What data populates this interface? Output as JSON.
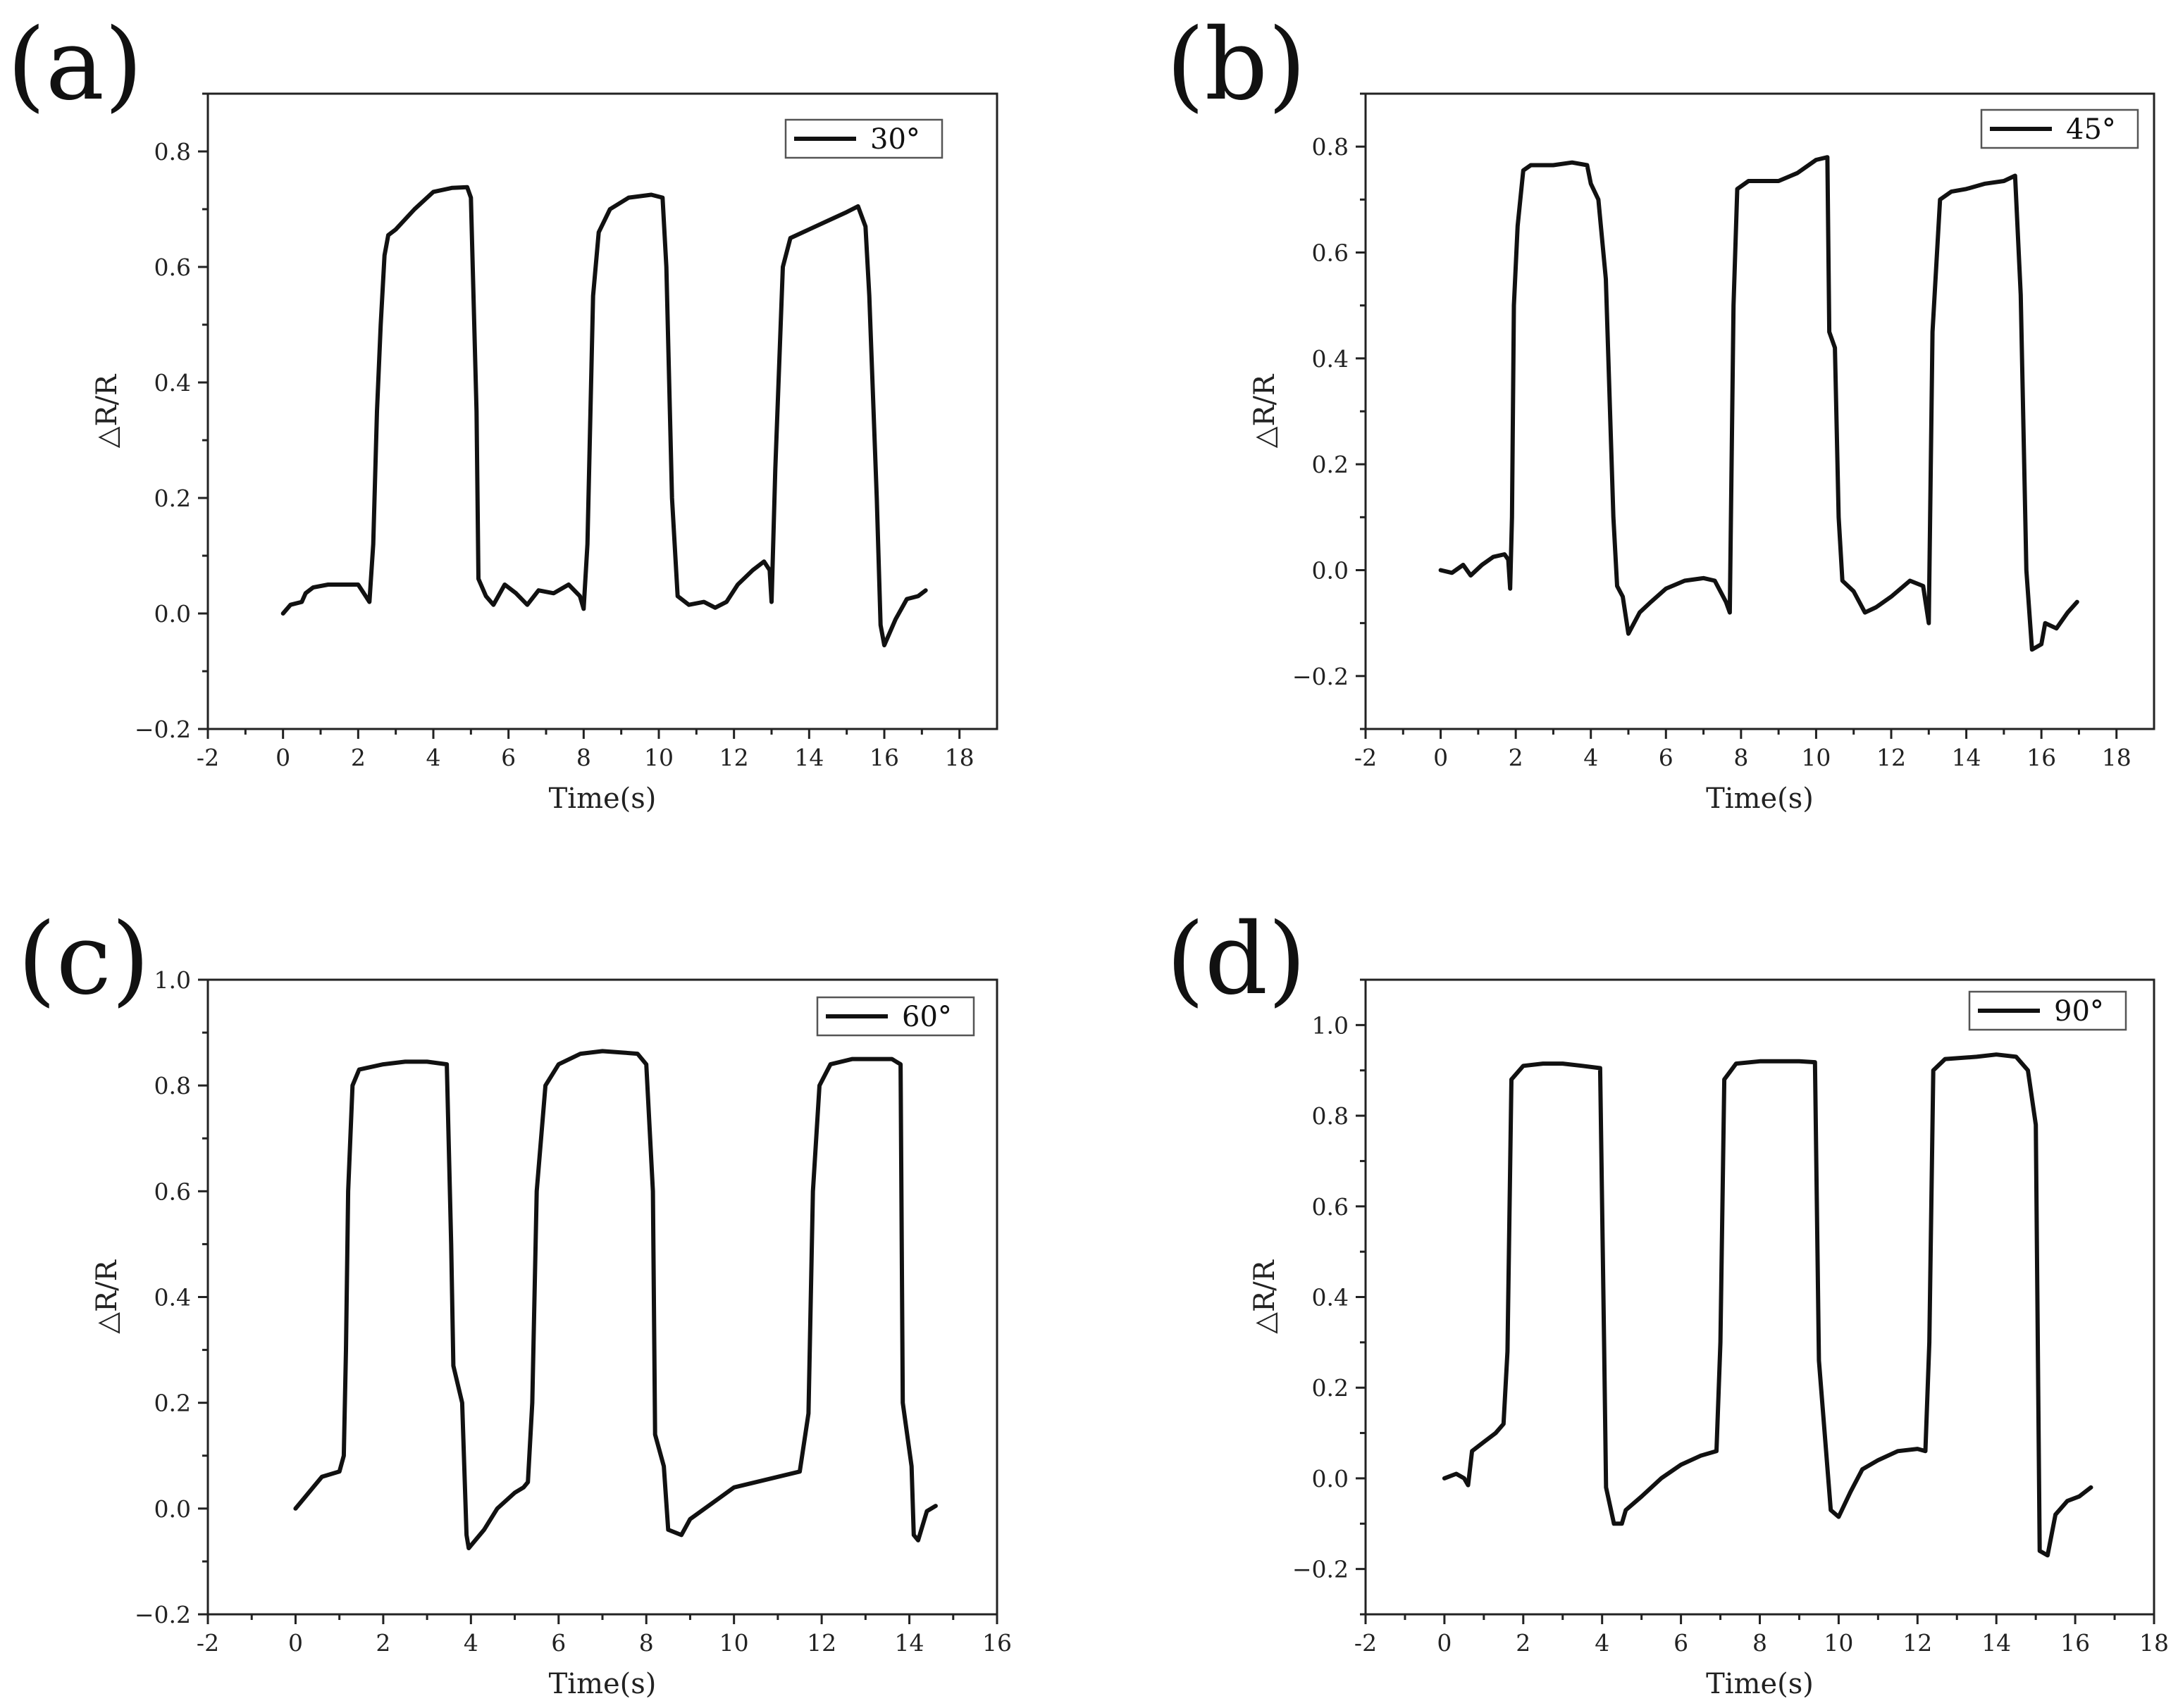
{
  "chart_data": [
    {
      "panel": "(a)",
      "type": "line",
      "xlabel": "Time(s)",
      "ylabel": "△R/R",
      "xlim": [
        -2,
        19
      ],
      "ylim": [
        -0.2,
        0.9
      ],
      "xticks": [
        -2,
        0,
        2,
        4,
        6,
        8,
        10,
        12,
        14,
        16,
        18
      ],
      "yticks": [
        -0.2,
        0.0,
        0.2,
        0.4,
        0.6,
        0.8
      ],
      "yminor": true,
      "legend": "top-right",
      "series": [
        {
          "name": "30°",
          "points": [
            [
              0,
              0.0
            ],
            [
              0.2,
              0.015
            ],
            [
              0.5,
              0.02
            ],
            [
              0.6,
              0.035
            ],
            [
              0.8,
              0.045
            ],
            [
              1.2,
              0.05
            ],
            [
              1.6,
              0.05
            ],
            [
              2.0,
              0.05
            ],
            [
              2.2,
              0.03
            ],
            [
              2.3,
              0.02
            ],
            [
              2.4,
              0.12
            ],
            [
              2.5,
              0.35
            ],
            [
              2.6,
              0.5
            ],
            [
              2.7,
              0.62
            ],
            [
              2.8,
              0.655
            ],
            [
              3.0,
              0.665
            ],
            [
              3.5,
              0.7
            ],
            [
              4.0,
              0.73
            ],
            [
              4.5,
              0.737
            ],
            [
              4.9,
              0.738
            ],
            [
              5.0,
              0.72
            ],
            [
              5.15,
              0.35
            ],
            [
              5.2,
              0.06
            ],
            [
              5.4,
              0.03
            ],
            [
              5.6,
              0.015
            ],
            [
              5.9,
              0.05
            ],
            [
              6.2,
              0.035
            ],
            [
              6.5,
              0.015
            ],
            [
              6.8,
              0.04
            ],
            [
              7.2,
              0.035
            ],
            [
              7.6,
              0.05
            ],
            [
              7.9,
              0.03
            ],
            [
              8.0,
              0.008
            ],
            [
              8.1,
              0.12
            ],
            [
              8.25,
              0.55
            ],
            [
              8.4,
              0.66
            ],
            [
              8.7,
              0.7
            ],
            [
              9.2,
              0.72
            ],
            [
              9.8,
              0.725
            ],
            [
              10.1,
              0.72
            ],
            [
              10.2,
              0.6
            ],
            [
              10.35,
              0.2
            ],
            [
              10.5,
              0.03
            ],
            [
              10.8,
              0.015
            ],
            [
              11.2,
              0.02
            ],
            [
              11.5,
              0.01
            ],
            [
              11.8,
              0.02
            ],
            [
              12.1,
              0.05
            ],
            [
              12.5,
              0.075
            ],
            [
              12.8,
              0.09
            ],
            [
              12.95,
              0.075
            ],
            [
              13.0,
              0.02
            ],
            [
              13.1,
              0.25
            ],
            [
              13.3,
              0.6
            ],
            [
              13.5,
              0.65
            ],
            [
              14.0,
              0.665
            ],
            [
              14.5,
              0.68
            ],
            [
              15.0,
              0.695
            ],
            [
              15.3,
              0.705
            ],
            [
              15.5,
              0.67
            ],
            [
              15.6,
              0.55
            ],
            [
              15.8,
              0.2
            ],
            [
              15.9,
              -0.02
            ],
            [
              16.0,
              -0.055
            ],
            [
              16.3,
              -0.01
            ],
            [
              16.6,
              0.025
            ],
            [
              16.9,
              0.03
            ],
            [
              17.1,
              0.04
            ]
          ]
        }
      ]
    },
    {
      "panel": "(b)",
      "type": "line",
      "xlabel": "Time(s)",
      "ylabel": "△R/R",
      "xlim": [
        -2,
        19
      ],
      "ylim": [
        -0.3,
        0.9
      ],
      "xticks": [
        -2,
        0,
        2,
        4,
        6,
        8,
        10,
        12,
        14,
        16,
        18
      ],
      "yticks": [
        -0.2,
        0.0,
        0.2,
        0.4,
        0.6,
        0.8
      ],
      "yminor": true,
      "legend": "top-right",
      "series": [
        {
          "name": "45°",
          "points": [
            [
              0,
              0.0
            ],
            [
              0.3,
              -0.005
            ],
            [
              0.6,
              0.01
            ],
            [
              0.8,
              -0.01
            ],
            [
              1.1,
              0.01
            ],
            [
              1.4,
              0.025
            ],
            [
              1.7,
              0.03
            ],
            [
              1.8,
              0.02
            ],
            [
              1.85,
              -0.035
            ],
            [
              1.9,
              0.1
            ],
            [
              1.95,
              0.5
            ],
            [
              2.05,
              0.65
            ],
            [
              2.2,
              0.755
            ],
            [
              2.4,
              0.765
            ],
            [
              3.0,
              0.765
            ],
            [
              3.5,
              0.77
            ],
            [
              3.9,
              0.765
            ],
            [
              4.0,
              0.73
            ],
            [
              4.2,
              0.7
            ],
            [
              4.4,
              0.55
            ],
            [
              4.6,
              0.1
            ],
            [
              4.7,
              -0.03
            ],
            [
              4.85,
              -0.05
            ],
            [
              5.0,
              -0.12
            ],
            [
              5.3,
              -0.08
            ],
            [
              5.6,
              -0.06
            ],
            [
              6.0,
              -0.035
            ],
            [
              6.5,
              -0.02
            ],
            [
              7.0,
              -0.015
            ],
            [
              7.3,
              -0.02
            ],
            [
              7.6,
              -0.06
            ],
            [
              7.7,
              -0.08
            ],
            [
              7.8,
              0.5
            ],
            [
              7.9,
              0.72
            ],
            [
              8.2,
              0.735
            ],
            [
              8.6,
              0.735
            ],
            [
              9.0,
              0.735
            ],
            [
              9.5,
              0.75
            ],
            [
              10.0,
              0.775
            ],
            [
              10.3,
              0.78
            ],
            [
              10.35,
              0.45
            ],
            [
              10.5,
              0.42
            ],
            [
              10.6,
              0.1
            ],
            [
              10.7,
              -0.02
            ],
            [
              11.0,
              -0.04
            ],
            [
              11.3,
              -0.08
            ],
            [
              11.6,
              -0.07
            ],
            [
              12.0,
              -0.05
            ],
            [
              12.5,
              -0.02
            ],
            [
              12.85,
              -0.03
            ],
            [
              13.0,
              -0.1
            ],
            [
              13.1,
              0.45
            ],
            [
              13.3,
              0.7
            ],
            [
              13.6,
              0.715
            ],
            [
              14.0,
              0.72
            ],
            [
              14.5,
              0.73
            ],
            [
              15.0,
              0.735
            ],
            [
              15.3,
              0.745
            ],
            [
              15.45,
              0.52
            ],
            [
              15.6,
              0.0
            ],
            [
              15.75,
              -0.15
            ],
            [
              16.0,
              -0.14
            ],
            [
              16.1,
              -0.1
            ],
            [
              16.4,
              -0.11
            ],
            [
              16.7,
              -0.08
            ],
            [
              16.95,
              -0.06
            ]
          ]
        }
      ]
    },
    {
      "panel": "(c)",
      "type": "line",
      "xlabel": "Time(s)",
      "ylabel": "△R/R",
      "xlim": [
        -2,
        16
      ],
      "ylim": [
        -0.2,
        1.0
      ],
      "xticks": [
        -2,
        0,
        2,
        4,
        6,
        8,
        10,
        12,
        14,
        16
      ],
      "yticks": [
        -0.2,
        0.0,
        0.2,
        0.4,
        0.6,
        0.8,
        1.0
      ],
      "yminor": true,
      "legend": "top-right",
      "series": [
        {
          "name": "60°",
          "points": [
            [
              0,
              0.0
            ],
            [
              0.2,
              0.02
            ],
            [
              0.4,
              0.04
            ],
            [
              0.6,
              0.06
            ],
            [
              0.8,
              0.065
            ],
            [
              1.0,
              0.07
            ],
            [
              1.1,
              0.1
            ],
            [
              1.15,
              0.3
            ],
            [
              1.2,
              0.6
            ],
            [
              1.3,
              0.8
            ],
            [
              1.45,
              0.83
            ],
            [
              2.0,
              0.84
            ],
            [
              2.5,
              0.845
            ],
            [
              3.0,
              0.845
            ],
            [
              3.45,
              0.84
            ],
            [
              3.55,
              0.5
            ],
            [
              3.6,
              0.27
            ],
            [
              3.8,
              0.2
            ],
            [
              3.9,
              -0.05
            ],
            [
              3.95,
              -0.075
            ],
            [
              4.3,
              -0.04
            ],
            [
              4.6,
              0.0
            ],
            [
              5.0,
              0.03
            ],
            [
              5.2,
              0.04
            ],
            [
              5.3,
              0.05
            ],
            [
              5.4,
              0.2
            ],
            [
              5.5,
              0.6
            ],
            [
              5.7,
              0.8
            ],
            [
              6.0,
              0.84
            ],
            [
              6.5,
              0.86
            ],
            [
              7.0,
              0.865
            ],
            [
              7.5,
              0.862
            ],
            [
              7.8,
              0.86
            ],
            [
              8.0,
              0.84
            ],
            [
              8.15,
              0.6
            ],
            [
              8.2,
              0.14
            ],
            [
              8.4,
              0.08
            ],
            [
              8.5,
              -0.04
            ],
            [
              8.8,
              -0.05
            ],
            [
              9.0,
              -0.02
            ],
            [
              9.5,
              0.01
            ],
            [
              10.0,
              0.04
            ],
            [
              10.5,
              0.05
            ],
            [
              11.0,
              0.06
            ],
            [
              11.5,
              0.07
            ],
            [
              11.7,
              0.18
            ],
            [
              11.8,
              0.6
            ],
            [
              11.95,
              0.8
            ],
            [
              12.2,
              0.84
            ],
            [
              12.7,
              0.85
            ],
            [
              13.2,
              0.85
            ],
            [
              13.6,
              0.85
            ],
            [
              13.8,
              0.84
            ],
            [
              13.85,
              0.2
            ],
            [
              14.05,
              0.08
            ],
            [
              14.1,
              -0.05
            ],
            [
              14.2,
              -0.06
            ],
            [
              14.4,
              -0.005
            ],
            [
              14.6,
              0.005
            ]
          ]
        }
      ]
    },
    {
      "panel": "(d)",
      "type": "line",
      "xlabel": "Time(s)",
      "ylabel": "△R/R",
      "xlim": [
        -2,
        18
      ],
      "ylim": [
        -0.3,
        1.1
      ],
      "xticks": [
        -2,
        0,
        2,
        4,
        6,
        8,
        10,
        12,
        14,
        16,
        18
      ],
      "yticks": [
        -0.2,
        0.0,
        0.2,
        0.4,
        0.6,
        0.8,
        1.0
      ],
      "yminor": true,
      "legend": "top-right",
      "series": [
        {
          "name": "90°",
          "points": [
            [
              0,
              0.0
            ],
            [
              0.3,
              0.01
            ],
            [
              0.5,
              0.0
            ],
            [
              0.6,
              -0.015
            ],
            [
              0.7,
              0.06
            ],
            [
              1.0,
              0.08
            ],
            [
              1.3,
              0.1
            ],
            [
              1.5,
              0.12
            ],
            [
              1.6,
              0.28
            ],
            [
              1.7,
              0.88
            ],
            [
              2.0,
              0.91
            ],
            [
              2.5,
              0.915
            ],
            [
              3.0,
              0.915
            ],
            [
              3.5,
              0.91
            ],
            [
              3.95,
              0.905
            ],
            [
              4.05,
              0.3
            ],
            [
              4.1,
              -0.02
            ],
            [
              4.3,
              -0.1
            ],
            [
              4.5,
              -0.1
            ],
            [
              4.6,
              -0.07
            ],
            [
              5.0,
              -0.04
            ],
            [
              5.5,
              0.0
            ],
            [
              6.0,
              0.03
            ],
            [
              6.5,
              0.05
            ],
            [
              6.9,
              0.06
            ],
            [
              7.0,
              0.3
            ],
            [
              7.1,
              0.88
            ],
            [
              7.4,
              0.915
            ],
            [
              8.0,
              0.92
            ],
            [
              8.5,
              0.92
            ],
            [
              9.0,
              0.92
            ],
            [
              9.4,
              0.918
            ],
            [
              9.5,
              0.26
            ],
            [
              9.6,
              0.15
            ],
            [
              9.8,
              -0.07
            ],
            [
              10.0,
              -0.085
            ],
            [
              10.3,
              -0.03
            ],
            [
              10.6,
              0.02
            ],
            [
              11.0,
              0.04
            ],
            [
              11.5,
              0.06
            ],
            [
              12.0,
              0.065
            ],
            [
              12.2,
              0.06
            ],
            [
              12.3,
              0.3
            ],
            [
              12.4,
              0.9
            ],
            [
              12.7,
              0.925
            ],
            [
              13.5,
              0.93
            ],
            [
              14.0,
              0.935
            ],
            [
              14.5,
              0.93
            ],
            [
              14.8,
              0.9
            ],
            [
              15.0,
              0.78
            ],
            [
              15.1,
              -0.16
            ],
            [
              15.3,
              -0.17
            ],
            [
              15.5,
              -0.08
            ],
            [
              15.8,
              -0.05
            ],
            [
              16.1,
              -0.04
            ],
            [
              16.4,
              -0.02
            ]
          ]
        }
      ]
    }
  ]
}
